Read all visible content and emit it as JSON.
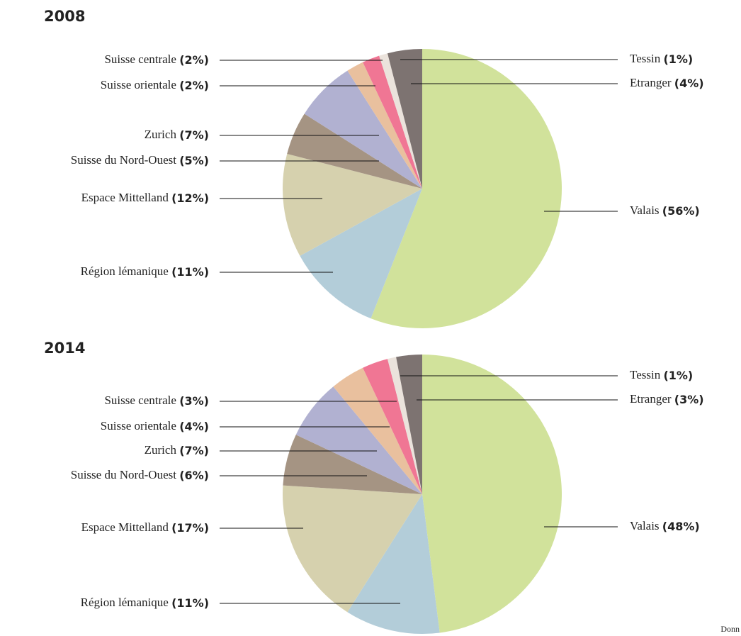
{
  "chart_data": [
    {
      "type": "pie",
      "title": "2008",
      "categories": [
        "Valais",
        "Région lémanique",
        "Espace Mittelland",
        "Suisse du Nord-Ouest",
        "Zurich",
        "Suisse orientale",
        "Suisse centrale",
        "Tessin",
        "Etranger"
      ],
      "values": [
        56,
        11,
        12,
        5,
        7,
        2,
        2,
        1,
        4
      ],
      "value_labels": [
        "(56%)",
        "(11%)",
        "(12%)",
        "(5%)",
        "(7%)",
        "(2%)",
        "(2%)",
        "(1%)",
        "(4%)"
      ],
      "colors": [
        "#d1e29b",
        "#b3cdd9",
        "#d6d1ae",
        "#a59483",
        "#b1b1d1",
        "#e9c09e",
        "#f07694",
        "#ebe3dc",
        "#7d7371"
      ]
    },
    {
      "type": "pie",
      "title": "2014",
      "categories": [
        "Valais",
        "Région lémanique",
        "Espace Mittelland",
        "Suisse du Nord-Ouest",
        "Zurich",
        "Suisse orientale",
        "Suisse centrale",
        "Tessin",
        "Etranger"
      ],
      "values": [
        48,
        11,
        17,
        6,
        7,
        4,
        3,
        1,
        3
      ],
      "value_labels": [
        "(48%)",
        "(11%)",
        "(17%)",
        "(6%)",
        "(7%)",
        "(4%)",
        "(3%)",
        "(1%)",
        "(3%)"
      ],
      "colors": [
        "#d1e29b",
        "#b3cdd9",
        "#d6d1ae",
        "#a59483",
        "#b1b1d1",
        "#e9c09e",
        "#f07694",
        "#ebe3dc",
        "#7d7371"
      ]
    }
  ],
  "source": "Donn"
}
